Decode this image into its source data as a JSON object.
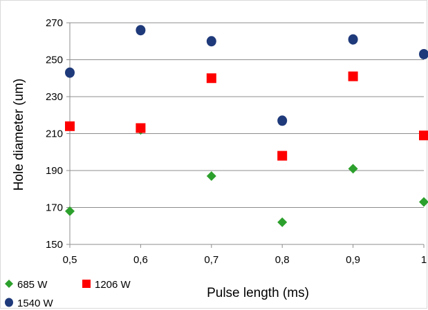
{
  "chart_data": {
    "type": "scatter",
    "xlabel": "Pulse length (ms)",
    "ylabel": "Hole diameter (um)",
    "xlim": [
      0.5,
      1.0
    ],
    "ylim": [
      150,
      270
    ],
    "x_ticks": [
      "0,5",
      "0,6",
      "0,7",
      "0,8",
      "0,9",
      "1"
    ],
    "y_ticks": [
      "150",
      "170",
      "190",
      "210",
      "230",
      "250",
      "270"
    ],
    "x_tick_values": [
      0.5,
      0.6,
      0.7,
      0.8,
      0.9,
      1.0
    ],
    "y_tick_values": [
      150,
      170,
      190,
      210,
      230,
      250,
      270
    ],
    "grid": "horizontal",
    "legend_position": "bottom-left",
    "series": [
      {
        "name": "685 W",
        "marker": "diamond",
        "color": "#2ca02c",
        "points": [
          [
            0.5,
            168
          ],
          [
            0.6,
            212
          ],
          [
            0.7,
            187
          ],
          [
            0.8,
            162
          ],
          [
            0.9,
            191
          ],
          [
            1.0,
            173
          ]
        ]
      },
      {
        "name": "1206 W",
        "marker": "square",
        "color": "#ff0000",
        "points": [
          [
            0.5,
            214
          ],
          [
            0.6,
            213
          ],
          [
            0.7,
            240
          ],
          [
            0.8,
            198
          ],
          [
            0.9,
            241
          ],
          [
            1.0,
            209
          ]
        ]
      },
      {
        "name": "1540 W",
        "marker": "circle",
        "color": "#1f3a7a",
        "points": [
          [
            0.5,
            243
          ],
          [
            0.6,
            266
          ],
          [
            0.7,
            260
          ],
          [
            0.8,
            217
          ],
          [
            0.9,
            261
          ],
          [
            1.0,
            253
          ]
        ]
      }
    ]
  }
}
